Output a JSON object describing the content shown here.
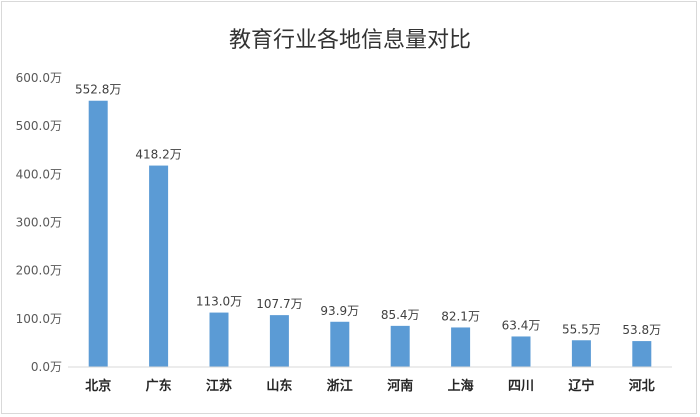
{
  "chart_data": {
    "type": "bar",
    "title": "教育行业各地信息量对比",
    "categories": [
      "北京",
      "广东",
      "江苏",
      "山东",
      "浙江",
      "河南",
      "上海",
      "四川",
      "辽宁",
      "河北"
    ],
    "values": [
      552.8,
      418.2,
      113.0,
      107.7,
      93.9,
      85.4,
      82.1,
      63.4,
      55.5,
      53.8
    ],
    "data_labels": [
      "552.8万",
      "418.2万",
      "113.0万",
      "107.7万",
      "93.9万",
      "85.4万",
      "82.1万",
      "63.4万",
      "55.5万",
      "53.8万"
    ],
    "ytick_values": [
      0,
      100,
      200,
      300,
      400,
      500,
      600
    ],
    "ytick_labels": [
      "0.0万",
      "100.0万",
      "200.0万",
      "300.0万",
      "400.0万",
      "500.0万",
      "600.0万"
    ],
    "ylim": [
      0,
      600
    ],
    "xlabel": "",
    "ylabel": "",
    "grid": false,
    "legend": "none",
    "colors": {
      "bar": "#5b9bd5",
      "axis": "#d9d9d9",
      "text": "#404040"
    }
  }
}
